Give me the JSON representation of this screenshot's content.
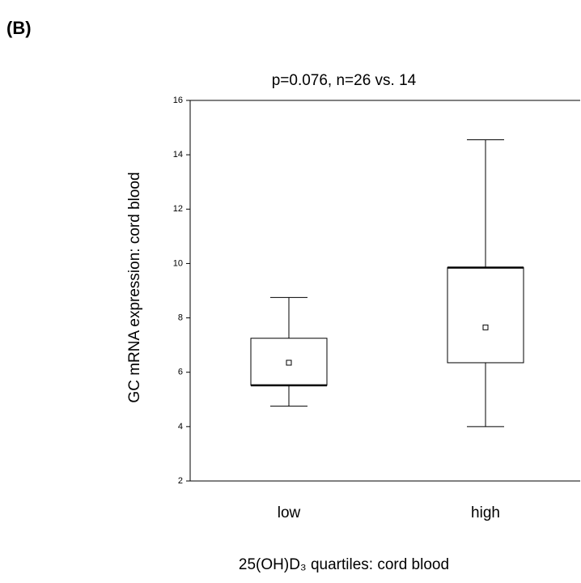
{
  "panel_label": "(B)",
  "chart_data": {
    "type": "box",
    "title": "p=0.076, n=26 vs. 14",
    "y_label": "GC mRNA expression: cord blood",
    "x_label": "25(OH)D₃ quartiles: cord blood",
    "categories": [
      "low",
      "high"
    ],
    "whisker_low": [
      4.75,
      4.0
    ],
    "q1": [
      5.52,
      6.35
    ],
    "median": [
      5.52,
      9.85
    ],
    "q3": [
      7.25,
      9.85
    ],
    "whisker_high": [
      8.75,
      14.55
    ],
    "mean": [
      6.35,
      7.65
    ],
    "ylim": [
      2,
      16
    ],
    "yticks": [
      2,
      4,
      6,
      8,
      10,
      12,
      14,
      16
    ]
  }
}
